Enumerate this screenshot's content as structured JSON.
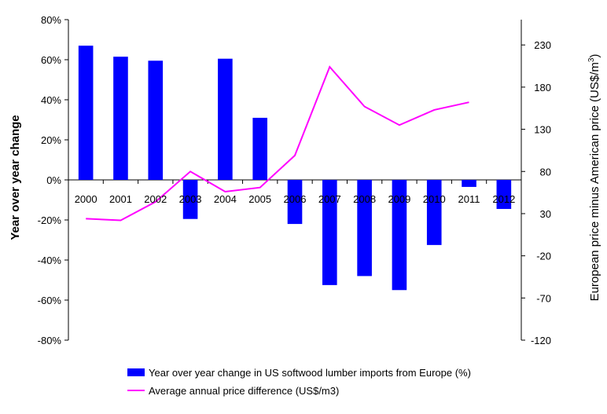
{
  "chart_data": {
    "type": "bar",
    "categories": [
      "2000",
      "2001",
      "2002",
      "2003",
      "2004",
      "2005",
      "2006",
      "2007",
      "2008",
      "2009",
      "2010",
      "2011",
      "2012"
    ],
    "series": [
      {
        "name": "Year over year change in US softwood lumber imports from Europe (%)",
        "type": "bar",
        "axis": "left",
        "color": "#0000FF",
        "values": [
          67,
          61.5,
          59.5,
          -19.5,
          60.5,
          31,
          -22,
          -52.5,
          -48,
          -55,
          -32.5,
          -3.5,
          -14.5
        ]
      },
      {
        "name": "Average annual price difference (US$/m3)",
        "type": "line",
        "axis": "right",
        "color": "#FF00FF",
        "values": [
          24,
          22,
          44,
          80,
          56,
          61,
          99,
          204,
          157,
          135,
          153,
          162,
          null
        ]
      }
    ],
    "ylabel": "Year over year change",
    "ylabel_right_pre": "European price minus American price (US$/m",
    "ylabel_right_sup": "3",
    "ylabel_right_post": ")",
    "ylim": [
      -80,
      80
    ],
    "yticks": [
      "80%",
      "60%",
      "40%",
      "20%",
      "0%",
      "-20%",
      "-40%",
      "-60%",
      "-80%"
    ],
    "ylim_right": [
      -120,
      260
    ],
    "yticks_right": [
      "230",
      "180",
      "130",
      "80",
      "30",
      "-20",
      "-70",
      "-120"
    ],
    "legend_position": "bottom"
  }
}
